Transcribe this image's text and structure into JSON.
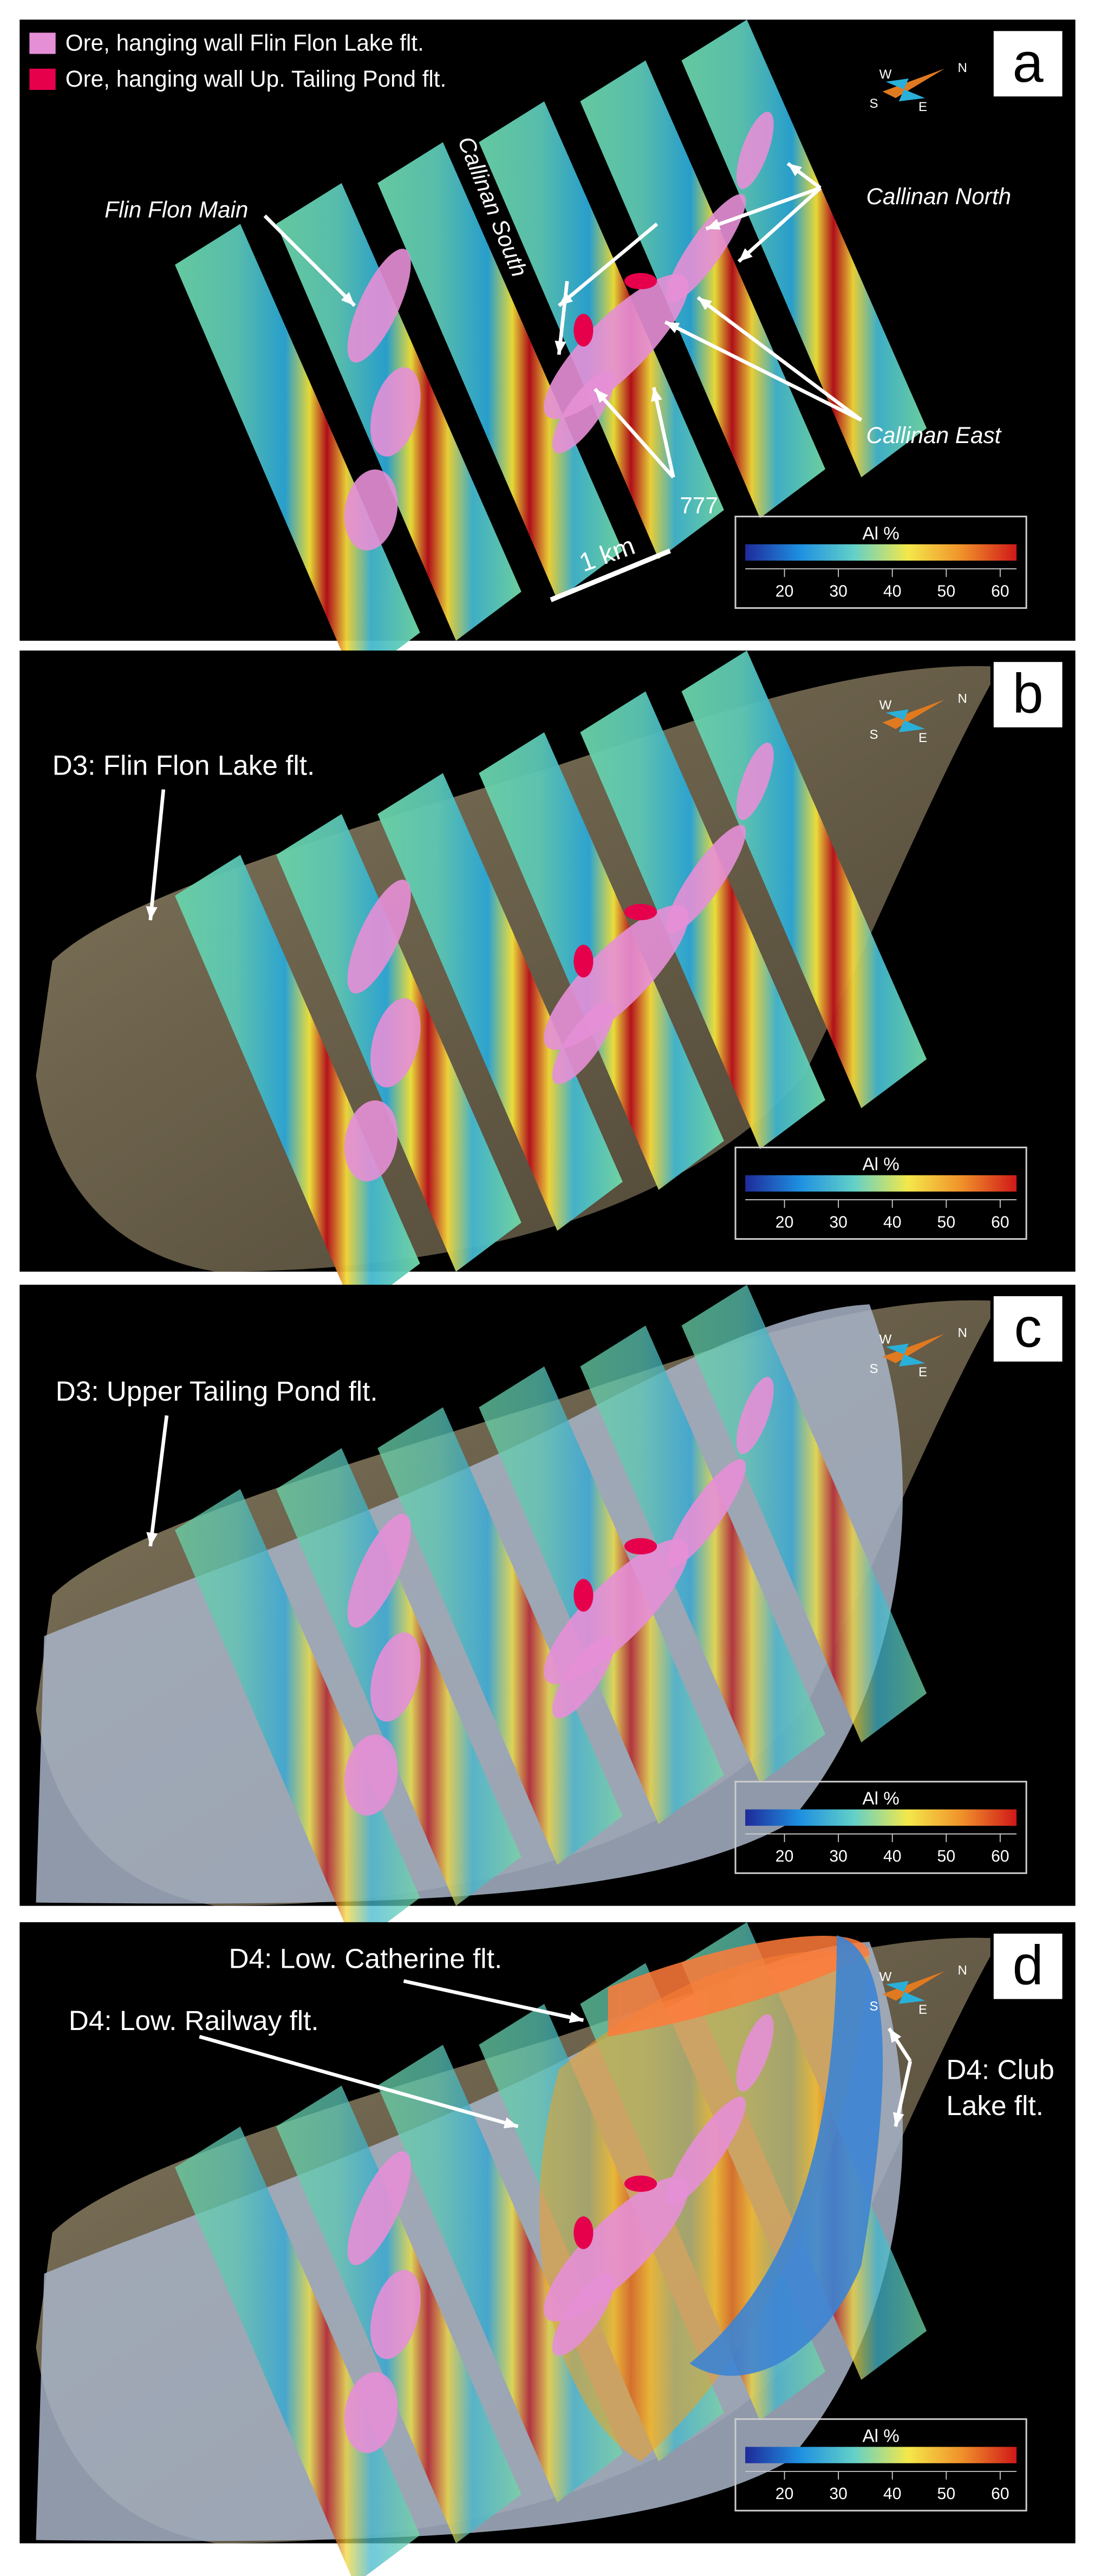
{
  "legend": [
    {
      "label": "Ore, hanging wall Flin Flon Lake flt.",
      "color": "#e58fd6"
    },
    {
      "label": "Ore, hanging wall Up. Tailing Pond flt.",
      "color": "#e6004c"
    }
  ],
  "compass": {
    "n": "N",
    "s": "S",
    "e": "E",
    "w": "W"
  },
  "panels": [
    {
      "label": "a",
      "annotations": [
        "Flin Flon Main",
        "Callinan South",
        "Callinan North",
        "Callinan East",
        "777",
        "1 km"
      ],
      "colorbar": {
        "title": "Al %",
        "ticks": [
          20,
          30,
          40,
          50,
          60
        ]
      }
    },
    {
      "label": "b",
      "annotations": [
        "D3: Flin Flon Lake flt."
      ],
      "colorbar": {
        "title": "Al %",
        "ticks": [
          20,
          30,
          40,
          50,
          60
        ]
      }
    },
    {
      "label": "c",
      "annotations": [
        "D3: Upper Tailing Pond flt."
      ],
      "colorbar": {
        "title": "Al %",
        "ticks": [
          20,
          30,
          40,
          50,
          60
        ]
      }
    },
    {
      "label": "d",
      "annotations": [
        "D4: Low. Catherine flt.",
        "D4: Low. Railway flt.",
        "D4: Club",
        "Lake flt."
      ],
      "colorbar": {
        "title": "Al %",
        "ticks": [
          20,
          30,
          40,
          50,
          60
        ]
      }
    }
  ]
}
